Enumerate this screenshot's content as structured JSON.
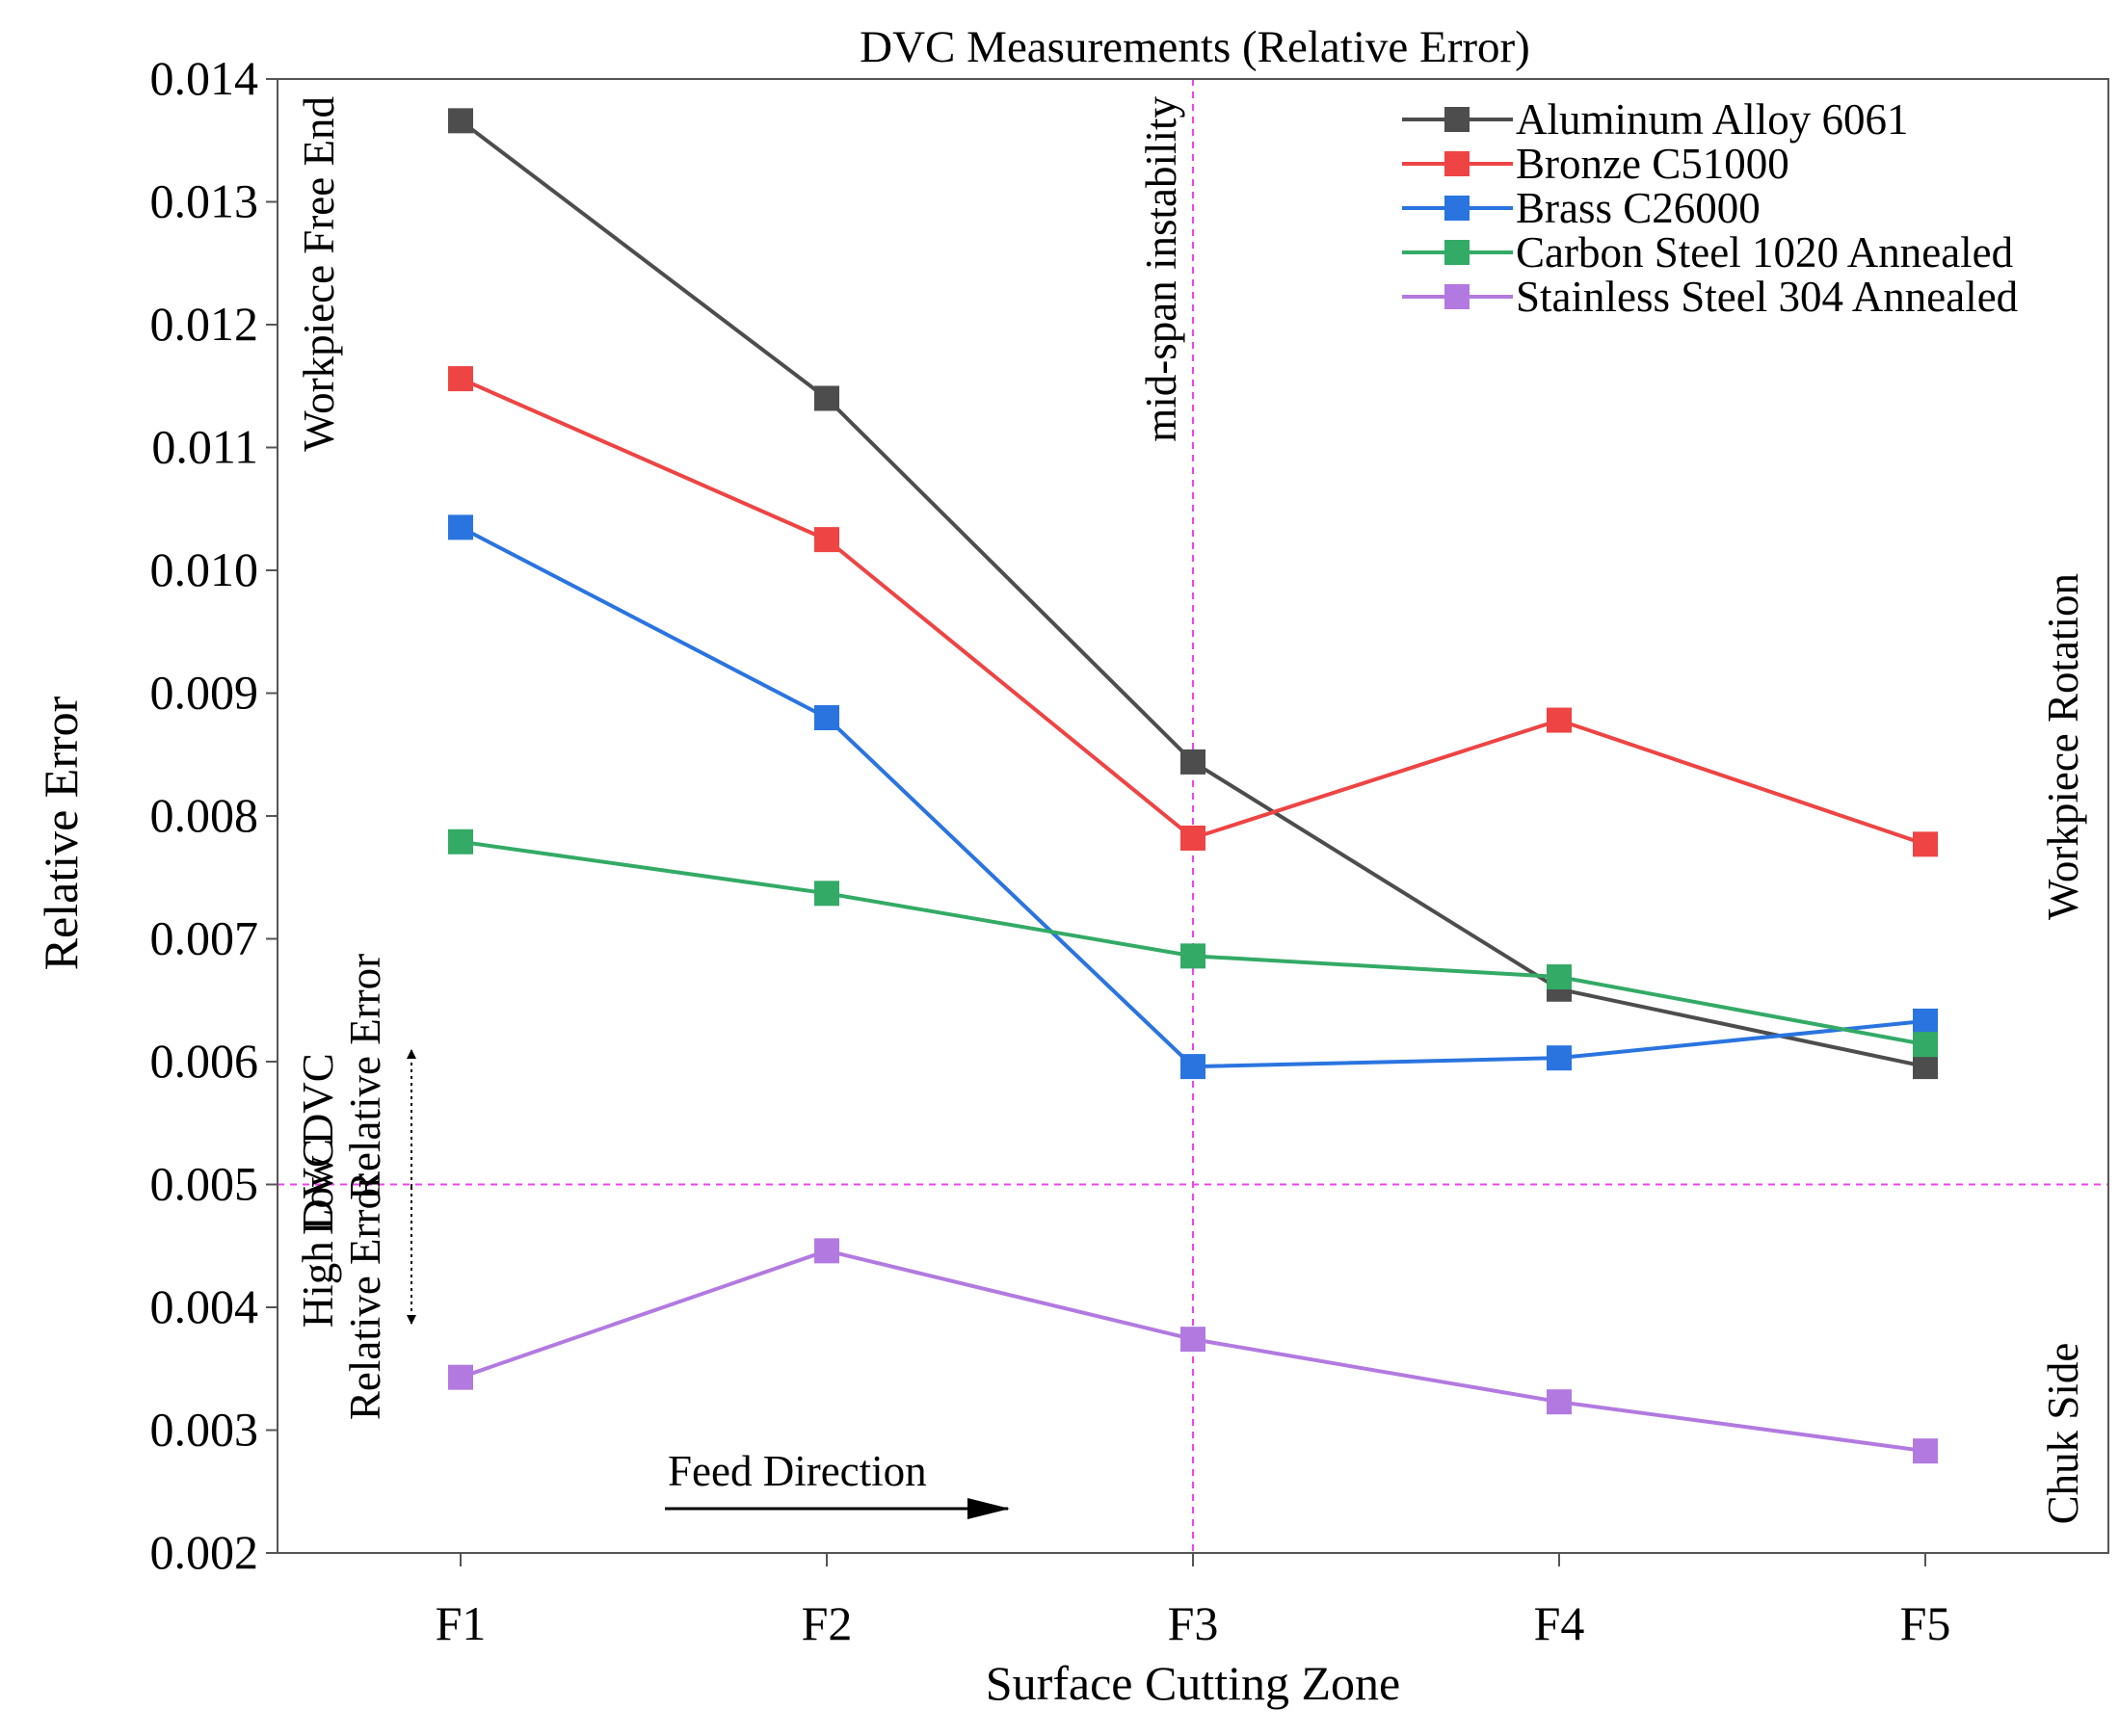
{
  "chart_data": {
    "type": "line",
    "title": "DVC Measurements (Relative Error)",
    "xlabel": "Surface Cutting Zone",
    "ylabel": "Relative Error",
    "categories": [
      "F1",
      "F2",
      "F3",
      "F4",
      "F5"
    ],
    "ylim": [
      0.002,
      0.014
    ],
    "yticks": [
      0.002,
      0.003,
      0.004,
      0.005,
      0.006,
      0.007,
      0.008,
      0.009,
      0.01,
      0.011,
      0.012,
      0.013,
      0.014
    ],
    "ytick_labels": [
      "0.002",
      "0.003",
      "0.004",
      "0.005",
      "0.006",
      "0.007",
      "0.008",
      "0.009",
      "0.010",
      "0.011",
      "0.012",
      "0.013",
      "0.014"
    ],
    "legend_position": "top-right",
    "series": [
      {
        "name": "Aluminum Alloy 6061",
        "color": "#4d4d4d",
        "values": [
          0.01366,
          0.0114,
          0.00844,
          0.00659,
          0.00596
        ]
      },
      {
        "name": "Bronze C51000",
        "color": "#ee4444",
        "values": [
          0.01156,
          0.01025,
          0.00782,
          0.00878,
          0.00777
        ]
      },
      {
        "name": "Brass C26000",
        "color": "#2a74e0",
        "values": [
          0.01035,
          0.0088,
          0.00596,
          0.00603,
          0.00633
        ]
      },
      {
        "name": "Carbon Steel 1020 Annealed",
        "color": "#33aa66",
        "values": [
          0.00779,
          0.00737,
          0.00686,
          0.00669,
          0.00614
        ]
      },
      {
        "name": "Stainless Steel 304 Annealed",
        "color": "#b27ae0",
        "values": [
          0.00343,
          0.00446,
          0.00374,
          0.00323,
          0.00283
        ]
      }
    ],
    "reference_lines": {
      "horizontal": {
        "value": 0.005,
        "color": "#ee44ee"
      },
      "vertical": {
        "category": "F3",
        "color": "#ee44ee"
      }
    },
    "annotations": {
      "mid_span": "mid-span instability",
      "free_end": "Workpiece Free End",
      "rotation": "Workpiece Rotation",
      "chuck_side": "Chuk Side",
      "high_line1": "High DVC",
      "high_line2": "Relative Error",
      "low_line1": "Low DVC",
      "low_line2": "Relative Error",
      "feed_direction": "Feed Direction"
    }
  }
}
